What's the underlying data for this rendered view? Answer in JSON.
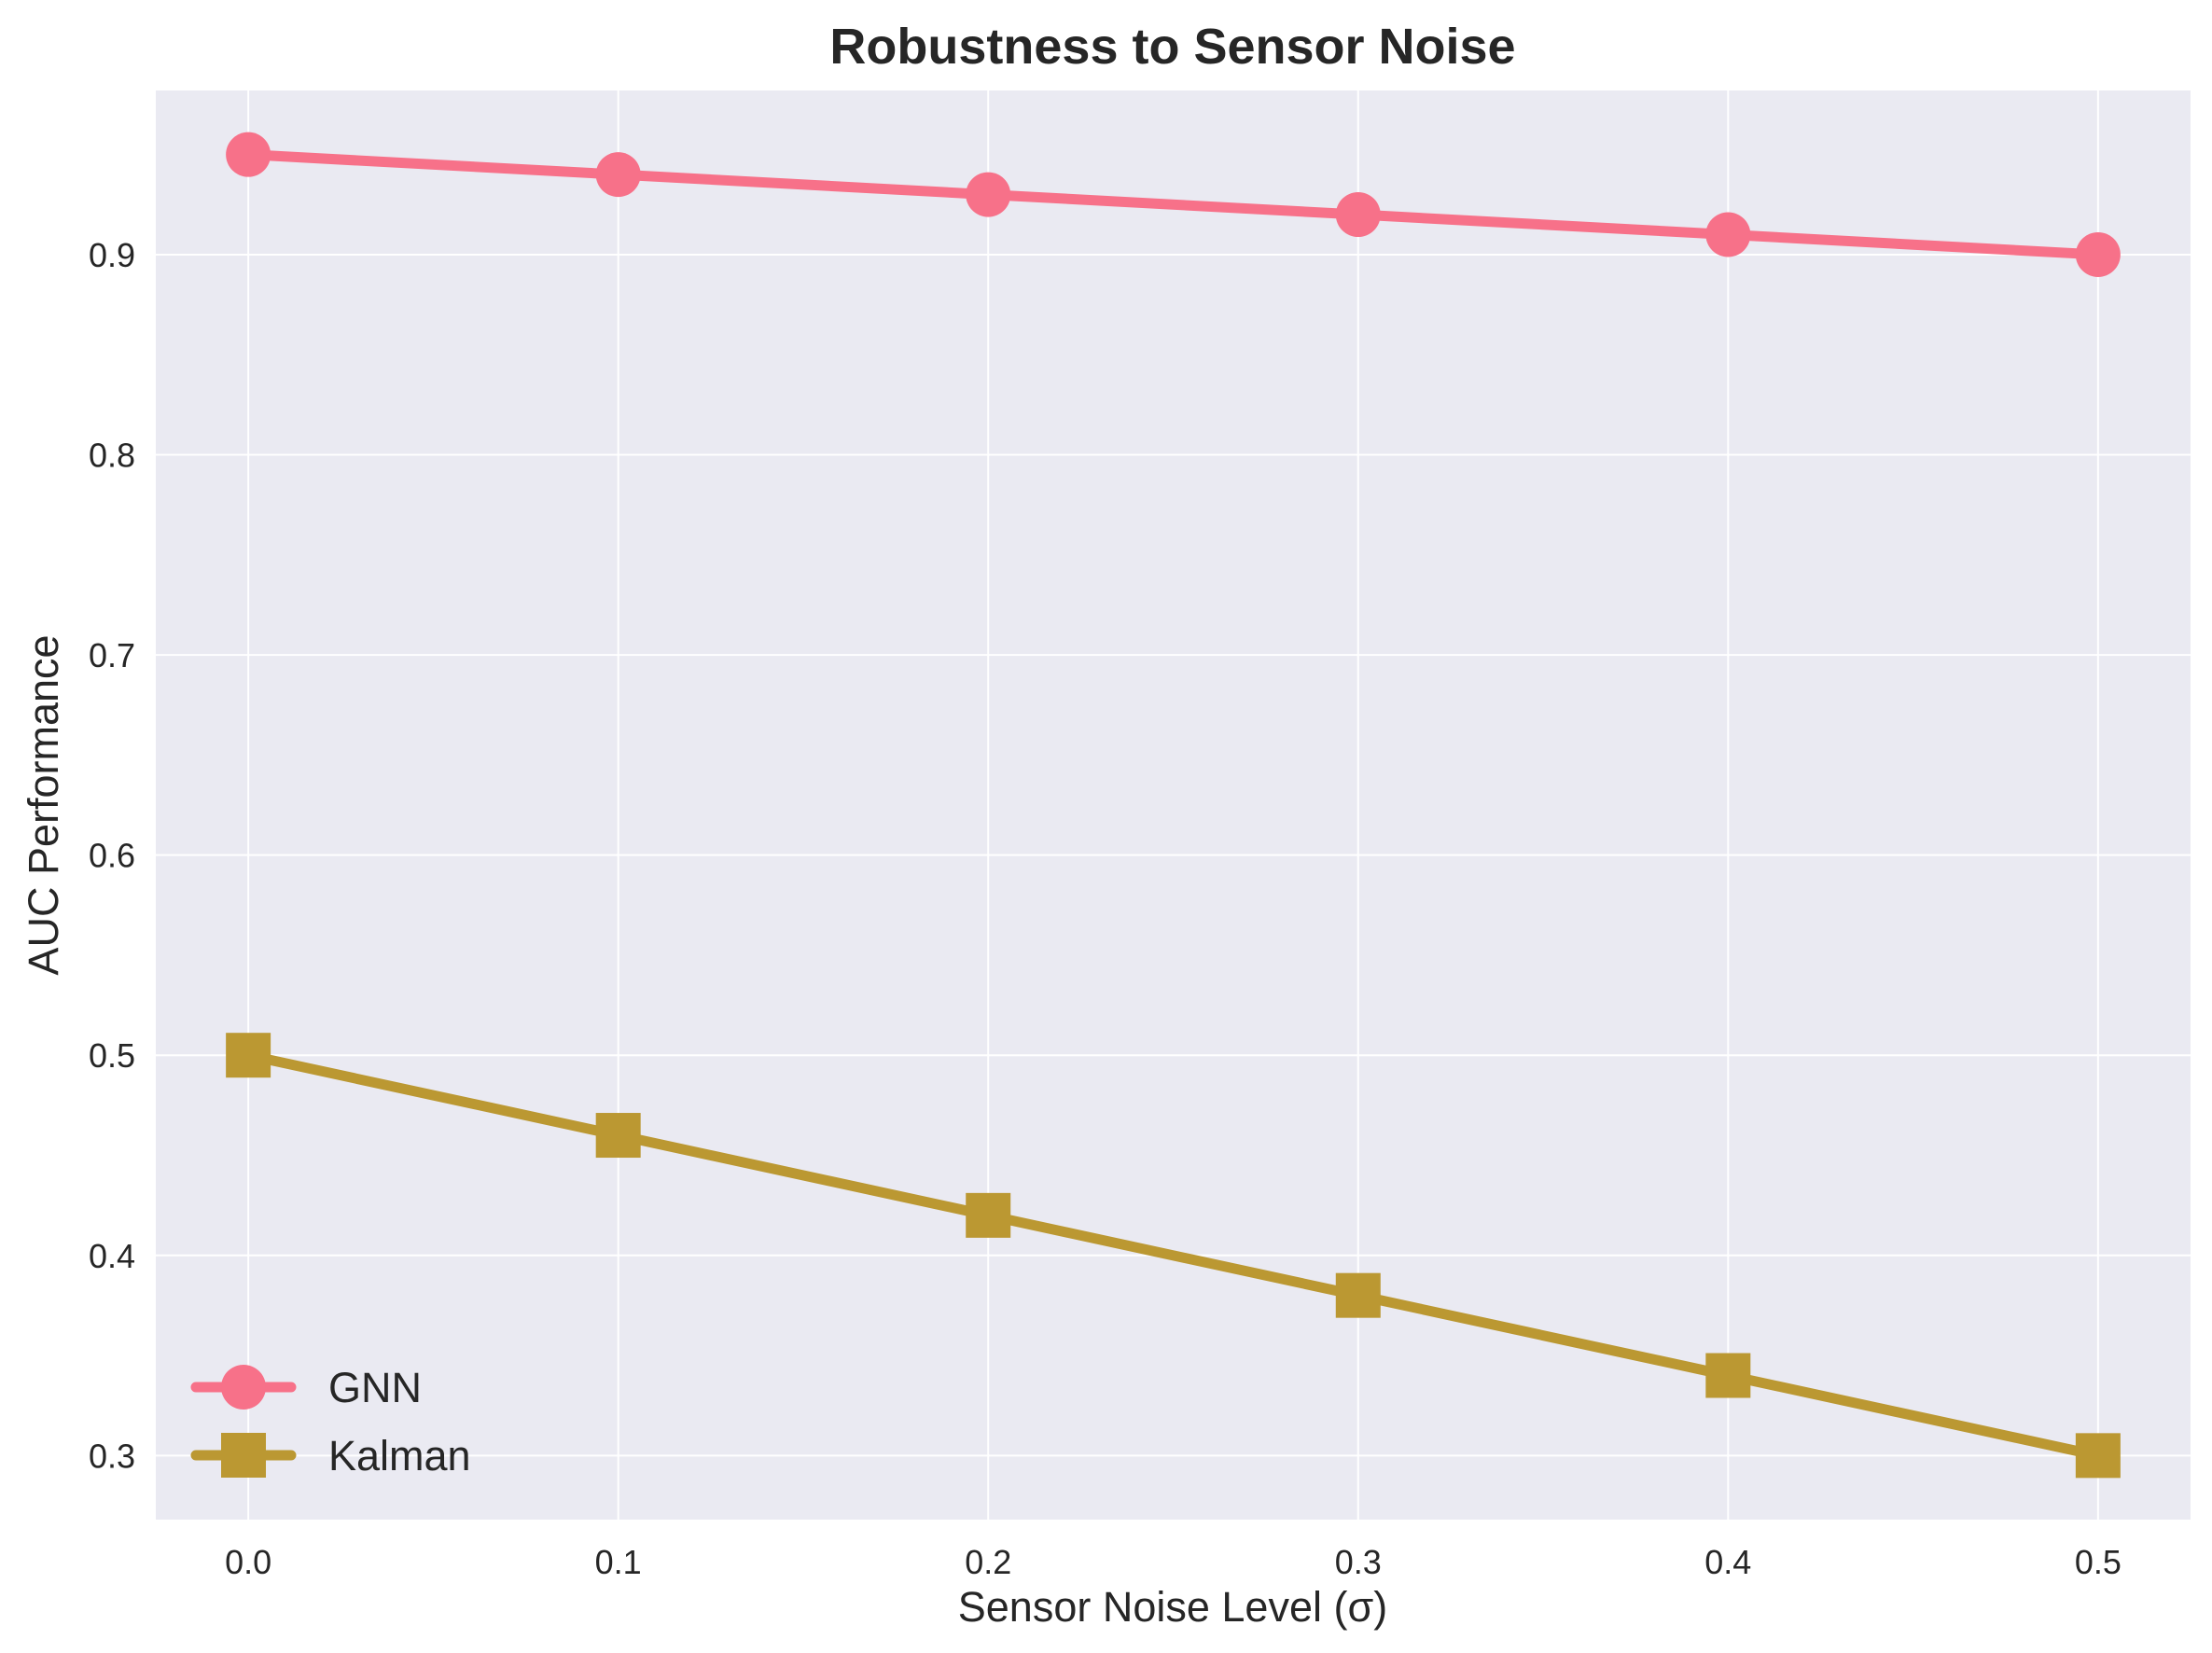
{
  "chart_data": {
    "type": "line",
    "title": "Robustness to Sensor Noise",
    "xlabel": "Sensor Noise Level (σ)",
    "ylabel": "AUC Performance",
    "x": [
      0.0,
      0.1,
      0.2,
      0.3,
      0.4,
      0.5
    ],
    "x_tick_labels": [
      "0.0",
      "0.1",
      "0.2",
      "0.3",
      "0.4",
      "0.5"
    ],
    "y_ticks": [
      0.3,
      0.4,
      0.5,
      0.6,
      0.7,
      0.8,
      0.9
    ],
    "y_tick_labels": [
      "0.3",
      "0.4",
      "0.5",
      "0.6",
      "0.7",
      "0.8",
      "0.9"
    ],
    "xlim": [
      -0.025,
      0.525
    ],
    "ylim": [
      0.268,
      0.982
    ],
    "grid": true,
    "legend_position": "lower-left",
    "colors": {
      "plot_background": "#eaeaf2",
      "grid": "#ffffff",
      "text": "#262626"
    },
    "series": [
      {
        "name": "GNN",
        "values": [
          0.95,
          0.94,
          0.93,
          0.92,
          0.91,
          0.9
        ],
        "color": "#f77189",
        "marker": "circle"
      },
      {
        "name": "Kalman",
        "values": [
          0.5,
          0.46,
          0.42,
          0.38,
          0.34,
          0.3
        ],
        "color": "#bb9832",
        "marker": "square"
      }
    ]
  }
}
